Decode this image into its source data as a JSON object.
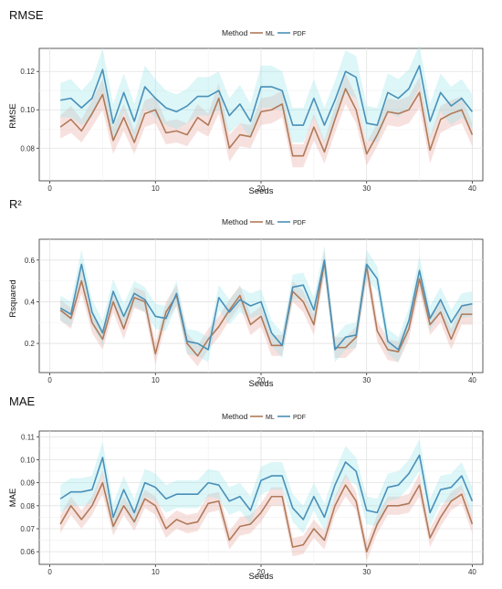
{
  "chart_data": [
    {
      "type": "line",
      "title": "RMSE",
      "xlabel": "Seeds",
      "ylabel": "RMSE",
      "xlim": [
        -1,
        41
      ],
      "ylim": [
        0.063,
        0.132
      ],
      "xticks": [
        0,
        10,
        20,
        30,
        40
      ],
      "yticks": [
        0.08,
        0.1,
        0.12
      ],
      "ytick_labels": [
        "0.08",
        "0.10",
        "0.12"
      ],
      "grid": true,
      "legend": {
        "title": "Method",
        "position": "top",
        "entries": [
          "ML",
          "PDF"
        ]
      },
      "x": [
        1,
        2,
        3,
        4,
        5,
        6,
        7,
        8,
        9,
        10,
        11,
        12,
        13,
        14,
        15,
        16,
        17,
        18,
        19,
        20,
        21,
        22,
        23,
        24,
        25,
        26,
        27,
        28,
        29,
        30,
        31,
        32,
        33,
        34,
        35,
        36,
        37,
        38,
        39,
        40
      ],
      "series": [
        {
          "name": "ML",
          "color": "#b07a5a",
          "values": [
            0.091,
            0.095,
            0.089,
            0.098,
            0.108,
            0.084,
            0.096,
            0.083,
            0.098,
            0.1,
            0.088,
            0.089,
            0.087,
            0.096,
            0.092,
            0.106,
            0.08,
            0.087,
            0.086,
            0.099,
            0.1,
            0.103,
            0.076,
            0.076,
            0.091,
            0.078,
            0.095,
            0.111,
            0.1,
            0.077,
            0.087,
            0.099,
            0.098,
            0.1,
            0.109,
            0.079,
            0.095,
            0.098,
            0.1,
            0.087
          ],
          "band": [
            0.006,
            0.007,
            0.006,
            0.007,
            0.008,
            0.007,
            0.007,
            0.006,
            0.007,
            0.007,
            0.006,
            0.006,
            0.006,
            0.007,
            0.006,
            0.008,
            0.007,
            0.006,
            0.006,
            0.007,
            0.007,
            0.007,
            0.006,
            0.006,
            0.007,
            0.006,
            0.007,
            0.008,
            0.007,
            0.006,
            0.006,
            0.007,
            0.007,
            0.007,
            0.008,
            0.007,
            0.007,
            0.007,
            0.007,
            0.006
          ]
        },
        {
          "name": "PDF",
          "color": "#4a90b8",
          "values": [
            0.105,
            0.106,
            0.101,
            0.106,
            0.121,
            0.093,
            0.109,
            0.094,
            0.112,
            0.106,
            0.101,
            0.099,
            0.102,
            0.107,
            0.107,
            0.11,
            0.097,
            0.103,
            0.094,
            0.112,
            0.112,
            0.11,
            0.092,
            0.092,
            0.106,
            0.092,
            0.105,
            0.12,
            0.117,
            0.093,
            0.092,
            0.109,
            0.106,
            0.111,
            0.123,
            0.094,
            0.109,
            0.102,
            0.106,
            0.099
          ],
          "band": [
            0.009,
            0.01,
            0.009,
            0.01,
            0.011,
            0.01,
            0.01,
            0.009,
            0.011,
            0.01,
            0.009,
            0.009,
            0.009,
            0.01,
            0.01,
            0.01,
            0.009,
            0.01,
            0.009,
            0.011,
            0.011,
            0.01,
            0.009,
            0.009,
            0.01,
            0.009,
            0.01,
            0.011,
            0.011,
            0.009,
            0.009,
            0.01,
            0.01,
            0.01,
            0.011,
            0.009,
            0.01,
            0.01,
            0.01,
            0.009
          ]
        }
      ]
    },
    {
      "type": "line",
      "title": "R²",
      "xlabel": "Seeds",
      "ylabel": "Rsquared",
      "xlim": [
        -1,
        41
      ],
      "ylim": [
        0.06,
        0.7
      ],
      "xticks": [
        0,
        10,
        20,
        30,
        40
      ],
      "yticks": [
        0.2,
        0.4,
        0.6
      ],
      "ytick_labels": [
        "0.2",
        "0.4",
        "0.6"
      ],
      "grid": true,
      "legend": {
        "title": "Method",
        "position": "top",
        "entries": [
          "ML",
          "PDF"
        ]
      },
      "x": [
        1,
        2,
        3,
        4,
        5,
        6,
        7,
        8,
        9,
        10,
        11,
        12,
        13,
        14,
        15,
        16,
        17,
        18,
        19,
        20,
        21,
        22,
        23,
        24,
        25,
        26,
        27,
        28,
        29,
        30,
        31,
        32,
        33,
        34,
        35,
        36,
        37,
        38,
        39,
        40
      ],
      "series": [
        {
          "name": "ML",
          "color": "#b07a5a",
          "values": [
            0.36,
            0.32,
            0.5,
            0.3,
            0.22,
            0.4,
            0.27,
            0.42,
            0.4,
            0.15,
            0.35,
            0.43,
            0.2,
            0.14,
            0.22,
            0.28,
            0.36,
            0.43,
            0.29,
            0.33,
            0.19,
            0.19,
            0.45,
            0.4,
            0.29,
            0.59,
            0.18,
            0.18,
            0.23,
            0.57,
            0.26,
            0.17,
            0.16,
            0.27,
            0.51,
            0.29,
            0.35,
            0.22,
            0.34,
            0.34
          ],
          "band": [
            0.05,
            0.05,
            0.06,
            0.05,
            0.05,
            0.05,
            0.05,
            0.05,
            0.05,
            0.05,
            0.05,
            0.05,
            0.05,
            0.05,
            0.05,
            0.05,
            0.05,
            0.05,
            0.05,
            0.05,
            0.05,
            0.05,
            0.05,
            0.05,
            0.05,
            0.06,
            0.05,
            0.05,
            0.05,
            0.06,
            0.05,
            0.05,
            0.05,
            0.05,
            0.06,
            0.05,
            0.05,
            0.05,
            0.05,
            0.05
          ]
        },
        {
          "name": "PDF",
          "color": "#4a90b8",
          "values": [
            0.37,
            0.34,
            0.58,
            0.35,
            0.25,
            0.45,
            0.33,
            0.44,
            0.41,
            0.33,
            0.32,
            0.44,
            0.21,
            0.2,
            0.17,
            0.42,
            0.35,
            0.41,
            0.38,
            0.4,
            0.25,
            0.19,
            0.47,
            0.48,
            0.36,
            0.6,
            0.17,
            0.23,
            0.24,
            0.58,
            0.51,
            0.21,
            0.17,
            0.31,
            0.55,
            0.32,
            0.41,
            0.3,
            0.38,
            0.39
          ],
          "band": [
            0.06,
            0.06,
            0.07,
            0.06,
            0.06,
            0.06,
            0.06,
            0.06,
            0.06,
            0.06,
            0.06,
            0.06,
            0.06,
            0.06,
            0.06,
            0.06,
            0.06,
            0.06,
            0.06,
            0.06,
            0.06,
            0.06,
            0.06,
            0.06,
            0.06,
            0.07,
            0.06,
            0.06,
            0.06,
            0.07,
            0.06,
            0.06,
            0.06,
            0.06,
            0.07,
            0.06,
            0.06,
            0.06,
            0.06,
            0.06
          ]
        }
      ]
    },
    {
      "type": "line",
      "title": "MAE",
      "xlabel": "Seeds",
      "ylabel": "MAE",
      "xlim": [
        -1,
        41
      ],
      "ylim": [
        0.0545,
        0.1125
      ],
      "xticks": [
        0,
        10,
        20,
        30,
        40
      ],
      "yticks": [
        0.06,
        0.07,
        0.08,
        0.09,
        0.1,
        0.11
      ],
      "ytick_labels": [
        "0.06",
        "0.07",
        "0.08",
        "0.09",
        "0.10",
        "0.11"
      ],
      "grid": true,
      "legend": {
        "title": "Method",
        "position": "top",
        "entries": [
          "ML",
          "PDF"
        ]
      },
      "x": [
        1,
        2,
        3,
        4,
        5,
        6,
        7,
        8,
        9,
        10,
        11,
        12,
        13,
        14,
        15,
        16,
        17,
        18,
        19,
        20,
        21,
        22,
        23,
        24,
        25,
        26,
        27,
        28,
        29,
        30,
        31,
        32,
        33,
        34,
        35,
        36,
        37,
        38,
        39,
        40
      ],
      "series": [
        {
          "name": "ML",
          "color": "#b07a5a",
          "values": [
            0.072,
            0.08,
            0.074,
            0.08,
            0.09,
            0.071,
            0.08,
            0.073,
            0.083,
            0.08,
            0.07,
            0.074,
            0.072,
            0.073,
            0.081,
            0.082,
            0.065,
            0.071,
            0.072,
            0.077,
            0.084,
            0.084,
            0.062,
            0.063,
            0.07,
            0.065,
            0.08,
            0.089,
            0.082,
            0.06,
            0.072,
            0.08,
            0.08,
            0.081,
            0.089,
            0.066,
            0.075,
            0.082,
            0.085,
            0.072
          ],
          "band": [
            0.004,
            0.004,
            0.004,
            0.004,
            0.005,
            0.004,
            0.004,
            0.004,
            0.004,
            0.004,
            0.004,
            0.004,
            0.004,
            0.004,
            0.004,
            0.004,
            0.004,
            0.004,
            0.004,
            0.004,
            0.004,
            0.004,
            0.004,
            0.004,
            0.004,
            0.004,
            0.004,
            0.005,
            0.004,
            0.004,
            0.004,
            0.004,
            0.004,
            0.004,
            0.005,
            0.004,
            0.004,
            0.004,
            0.004,
            0.004
          ]
        },
        {
          "name": "PDF",
          "color": "#4a90b8",
          "values": [
            0.083,
            0.086,
            0.086,
            0.087,
            0.101,
            0.075,
            0.087,
            0.077,
            0.09,
            0.088,
            0.083,
            0.085,
            0.085,
            0.085,
            0.09,
            0.089,
            0.082,
            0.084,
            0.078,
            0.091,
            0.093,
            0.093,
            0.079,
            0.074,
            0.084,
            0.075,
            0.089,
            0.099,
            0.095,
            0.078,
            0.077,
            0.088,
            0.089,
            0.094,
            0.102,
            0.077,
            0.087,
            0.088,
            0.093,
            0.082
          ],
          "band": [
            0.006,
            0.006,
            0.006,
            0.006,
            0.007,
            0.006,
            0.006,
            0.006,
            0.006,
            0.006,
            0.006,
            0.006,
            0.006,
            0.006,
            0.006,
            0.006,
            0.006,
            0.006,
            0.006,
            0.006,
            0.006,
            0.006,
            0.006,
            0.006,
            0.006,
            0.006,
            0.006,
            0.007,
            0.006,
            0.006,
            0.006,
            0.006,
            0.006,
            0.006,
            0.007,
            0.006,
            0.006,
            0.006,
            0.006,
            0.006
          ]
        }
      ]
    }
  ]
}
